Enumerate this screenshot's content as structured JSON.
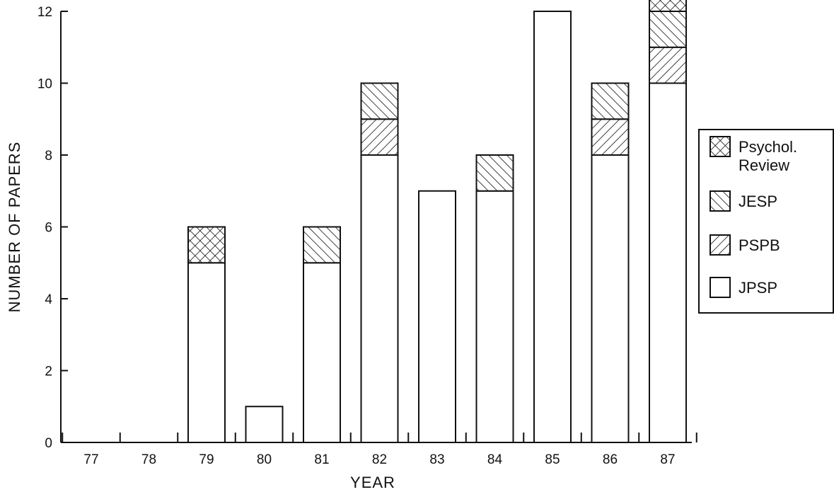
{
  "chart_data": {
    "type": "bar",
    "stacked": true,
    "categories": [
      "77",
      "78",
      "79",
      "80",
      "81",
      "82",
      "83",
      "84",
      "85",
      "86",
      "87"
    ],
    "series": [
      {
        "name": "JPSP",
        "values": [
          0,
          0,
          5,
          1,
          5,
          8,
          7,
          7,
          12,
          8,
          10
        ],
        "pattern": "none"
      },
      {
        "name": "PSPB",
        "values": [
          0,
          0,
          0,
          0,
          0,
          1,
          0,
          0,
          0,
          1,
          1
        ],
        "pattern": "forward-diagonal"
      },
      {
        "name": "JESP",
        "values": [
          0,
          0,
          0,
          0,
          1,
          1,
          0,
          1,
          0,
          1,
          1
        ],
        "pattern": "back-diagonal"
      },
      {
        "name": "Psychol. Review",
        "values": [
          0,
          0,
          1,
          0,
          0,
          0,
          0,
          0,
          0,
          0,
          1
        ],
        "pattern": "crosshatch"
      }
    ],
    "xlabel": "YEAR",
    "ylabel": "NUMBER OF PAPERS",
    "ylim": [
      0,
      12
    ],
    "yticks": [
      "0",
      "2",
      "4",
      "6",
      "8",
      "10",
      "12"
    ],
    "grid": false,
    "legend_position": "right",
    "legend_order": [
      "Psychol. Review",
      "JESP",
      "PSPB",
      "JPSP"
    ],
    "colors": {
      "ink": "#111111",
      "fill": "#ffffff"
    }
  }
}
